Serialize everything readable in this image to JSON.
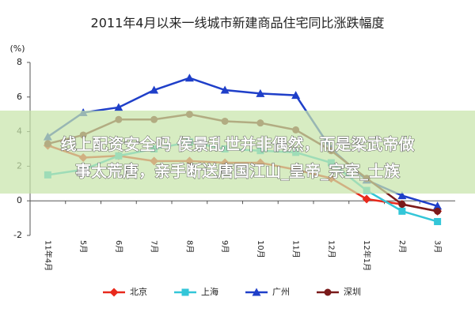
{
  "chart_data": {
    "type": "line",
    "title": "2011年4月以来一线城市新建商品住宅同比涨跌幅度",
    "y_label": "(%)",
    "categories": [
      "11年4月",
      "5月",
      "6月",
      "7月",
      "8月",
      "9月",
      "10月",
      "11月",
      "12月",
      "12年1月",
      "2月",
      "3月"
    ],
    "series": [
      {
        "name": "北京",
        "color": "#e8291c",
        "marker": "diamond",
        "values": [
          3.2,
          2.5,
          2.6,
          2.3,
          2.3,
          2.2,
          2.2,
          1.8,
          1.3,
          0.1,
          -0.2,
          -0.6
        ]
      },
      {
        "name": "上海",
        "color": "#33c6d8",
        "marker": "square",
        "values": [
          1.5,
          1.8,
          2.6,
          3.0,
          3.4,
          3.0,
          2.9,
          2.8,
          2.2,
          0.6,
          -0.6,
          -1.2
        ]
      },
      {
        "name": "广州",
        "color": "#1f3fc9",
        "marker": "triangle",
        "values": [
          3.7,
          5.1,
          5.4,
          6.4,
          7.1,
          6.4,
          6.2,
          6.1,
          3.0,
          1.2,
          0.3,
          -0.3
        ]
      },
      {
        "name": "深圳",
        "color": "#7a1a1a",
        "marker": "circle",
        "values": [
          3.3,
          3.8,
          4.7,
          4.7,
          5.0,
          4.6,
          4.5,
          4.1,
          2.9,
          1.3,
          -0.2,
          -0.6
        ]
      }
    ],
    "ylim": [
      -2,
      8
    ],
    "yticks": [
      -2,
      0,
      2,
      4,
      6,
      8
    ],
    "legend": "bottom"
  },
  "overlay": {
    "lines": [
      "线上配资安全吗 侯景乱世并非偶然，而是梁武帝做",
      "事太荒唐，亲手断送唐国江山_皇帝_宗室_士族"
    ]
  }
}
